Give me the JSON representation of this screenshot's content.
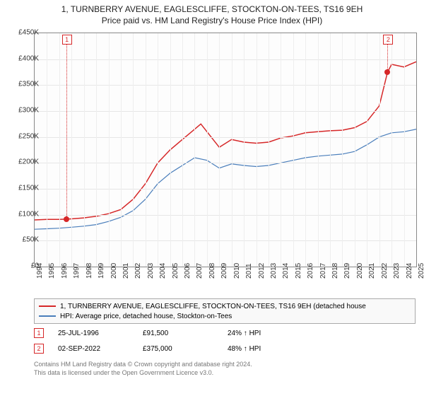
{
  "title_line1": "1, TURNBERRY AVENUE, EAGLESCLIFFE, STOCKTON-ON-TEES, TS16 9EH",
  "title_line2": "Price paid vs. HM Land Registry's House Price Index (HPI)",
  "chart": {
    "type": "line",
    "ylim": [
      0,
      450000
    ],
    "ytick_step": 50000,
    "yaxis_prefix": "£",
    "yaxis_k_suffix": "K",
    "xlim": [
      1994,
      2025
    ],
    "xtick_step": 1,
    "background_color": "#fdfdfd",
    "grid_color": "#e6e6e6",
    "border_color": "#888888",
    "series": [
      {
        "name": "property",
        "color": "#d62728",
        "line_width": 1.5,
        "label": "1, TURNBERRY AVENUE, EAGLESCLIFFE, STOCKTON-ON-TEES, TS16 9EH (detached house",
        "points": [
          [
            1994,
            90000
          ],
          [
            1995,
            91000
          ],
          [
            1996,
            91000
          ],
          [
            1996.56,
            91500
          ],
          [
            1997,
            92000
          ],
          [
            1998,
            94000
          ],
          [
            1999,
            97000
          ],
          [
            2000,
            102000
          ],
          [
            2001,
            110000
          ],
          [
            2002,
            130000
          ],
          [
            2003,
            160000
          ],
          [
            2004,
            200000
          ],
          [
            2005,
            225000
          ],
          [
            2006,
            245000
          ],
          [
            2007,
            265000
          ],
          [
            2007.5,
            275000
          ],
          [
            2008,
            260000
          ],
          [
            2009,
            230000
          ],
          [
            2010,
            245000
          ],
          [
            2011,
            240000
          ],
          [
            2012,
            238000
          ],
          [
            2013,
            240000
          ],
          [
            2014,
            248000
          ],
          [
            2015,
            252000
          ],
          [
            2016,
            258000
          ],
          [
            2017,
            260000
          ],
          [
            2018,
            262000
          ],
          [
            2019,
            263000
          ],
          [
            2020,
            268000
          ],
          [
            2021,
            280000
          ],
          [
            2022,
            310000
          ],
          [
            2022.67,
            375000
          ],
          [
            2023,
            390000
          ],
          [
            2024,
            385000
          ],
          [
            2025,
            395000
          ]
        ]
      },
      {
        "name": "hpi",
        "color": "#4a7ebb",
        "line_width": 1.2,
        "label": "HPI: Average price, detached house, Stockton-on-Tees",
        "points": [
          [
            1994,
            72000
          ],
          [
            1995,
            73000
          ],
          [
            1996,
            74000
          ],
          [
            1997,
            76000
          ],
          [
            1998,
            78000
          ],
          [
            1999,
            81000
          ],
          [
            2000,
            87000
          ],
          [
            2001,
            95000
          ],
          [
            2002,
            108000
          ],
          [
            2003,
            130000
          ],
          [
            2004,
            160000
          ],
          [
            2005,
            180000
          ],
          [
            2006,
            195000
          ],
          [
            2007,
            210000
          ],
          [
            2008,
            205000
          ],
          [
            2009,
            190000
          ],
          [
            2010,
            198000
          ],
          [
            2011,
            195000
          ],
          [
            2012,
            193000
          ],
          [
            2013,
            195000
          ],
          [
            2014,
            200000
          ],
          [
            2015,
            205000
          ],
          [
            2016,
            210000
          ],
          [
            2017,
            213000
          ],
          [
            2018,
            215000
          ],
          [
            2019,
            217000
          ],
          [
            2020,
            222000
          ],
          [
            2021,
            235000
          ],
          [
            2022,
            250000
          ],
          [
            2023,
            258000
          ],
          [
            2024,
            260000
          ],
          [
            2025,
            265000
          ]
        ]
      }
    ],
    "markers": [
      {
        "id": "1",
        "x": 1996.56,
        "y": 91500
      },
      {
        "id": "2",
        "x": 2022.67,
        "y": 375000
      }
    ]
  },
  "legend": {
    "series1": "1, TURNBERRY AVENUE, EAGLESCLIFFE, STOCKTON-ON-TEES, TS16 9EH (detached house",
    "series2": "HPI: Average price, detached house, Stockton-on-Tees"
  },
  "transactions": [
    {
      "marker": "1",
      "date": "25-JUL-1996",
      "price": "£91,500",
      "delta": "24% ↑ HPI"
    },
    {
      "marker": "2",
      "date": "02-SEP-2022",
      "price": "£375,000",
      "delta": "48% ↑ HPI"
    }
  ],
  "footnote_line1": "Contains HM Land Registry data © Crown copyright and database right 2024.",
  "footnote_line2": "This data is licensed under the Open Government Licence v3.0."
}
